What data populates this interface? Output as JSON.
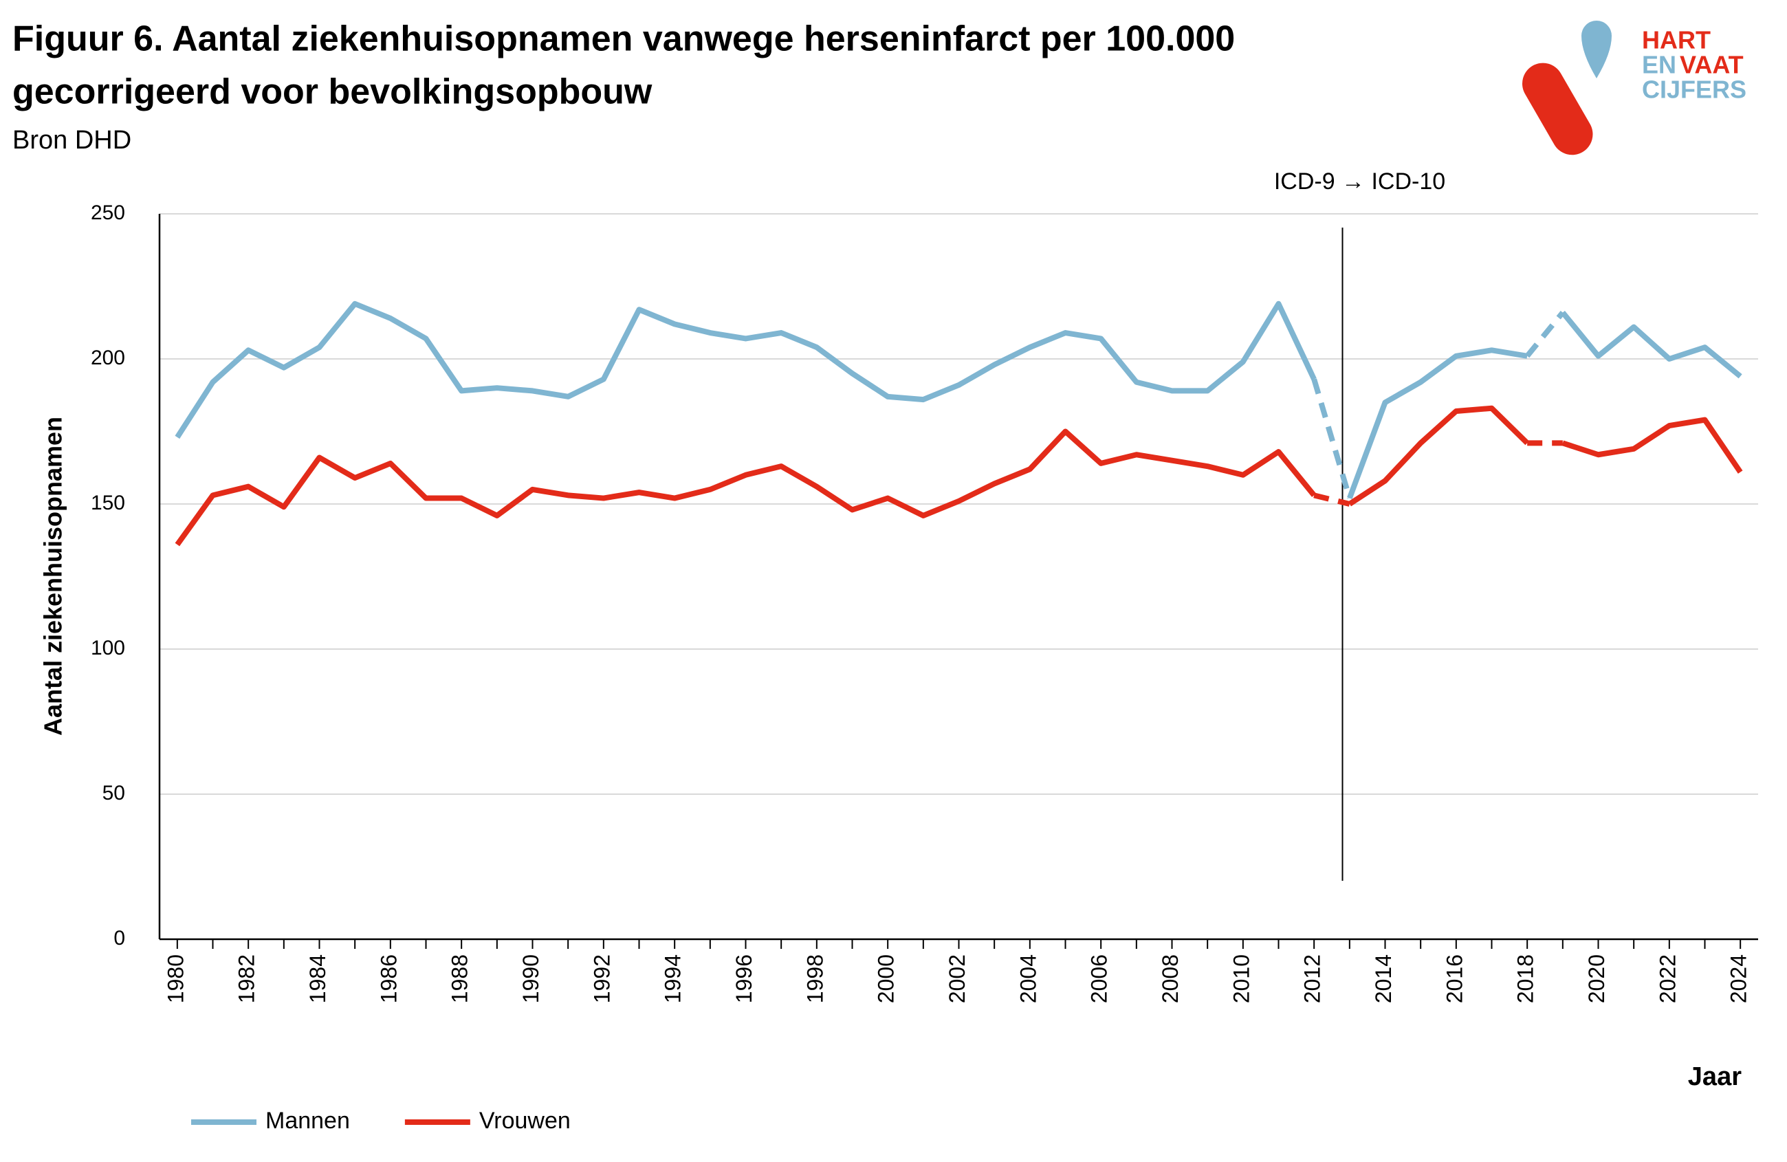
{
  "chart_data": {
    "type": "line",
    "title": "Figuur 6. Aantal ziekenhuisopnamen vanwege herseninfarct per 100.000",
    "title_line2": "gecorrigeerd voor bevolkingsopbouw",
    "subtitle": "Bron DHD",
    "ylabel": "Aantal ziekenhuisopnamen",
    "xlabel": "Jaar",
    "x": [
      1980,
      1981,
      1982,
      1983,
      1984,
      1985,
      1986,
      1987,
      1988,
      1989,
      1990,
      1991,
      1992,
      1993,
      1994,
      1995,
      1996,
      1997,
      1998,
      1999,
      2000,
      2001,
      2002,
      2003,
      2004,
      2005,
      2006,
      2007,
      2008,
      2009,
      2010,
      2011,
      2012,
      2013,
      2014,
      2015,
      2016,
      2017,
      2018,
      2019,
      2020,
      2021,
      2022,
      2023,
      2024
    ],
    "series": [
      {
        "name": "Mannen",
        "color": "#7fb5d1",
        "values": [
          173,
          192,
          203,
          197,
          204,
          219,
          214,
          207,
          189,
          190,
          189,
          187,
          193,
          217,
          212,
          209,
          207,
          209,
          204,
          195,
          187,
          186,
          191,
          198,
          204,
          209,
          207,
          192,
          189,
          189,
          199,
          219,
          193,
          152,
          185,
          192,
          201,
          203,
          201,
          216,
          201,
          211,
          200,
          204,
          194
        ]
      },
      {
        "name": "Vrouwen",
        "color": "#e32b19",
        "values": [
          136,
          153,
          156,
          149,
          166,
          159,
          164,
          152,
          152,
          146,
          155,
          153,
          152,
          154,
          152,
          155,
          160,
          163,
          156,
          148,
          152,
          146,
          151,
          157,
          162,
          175,
          164,
          167,
          165,
          163,
          160,
          168,
          153,
          150,
          158,
          171,
          182,
          183,
          171,
          171,
          167,
          169,
          177,
          179,
          161
        ]
      }
    ],
    "dashed_segments": [
      [
        2012,
        2013
      ],
      [
        2018,
        2019
      ]
    ],
    "xlim": [
      1979.5,
      2024.5
    ],
    "xticks": [
      1980,
      1982,
      1984,
      1986,
      1988,
      1990,
      1992,
      1994,
      1996,
      1998,
      2000,
      2002,
      2004,
      2006,
      2008,
      2010,
      2012,
      2014,
      2016,
      2018,
      2020,
      2022,
      2024
    ],
    "ylim": [
      0,
      250
    ],
    "yticks": [
      0,
      50,
      100,
      150,
      200,
      250
    ],
    "grid": true,
    "annotation": {
      "text": "ICD-9 → ICD-10",
      "x": 2012.8
    },
    "legend": "bottom-left"
  },
  "logo": {
    "hart": "HART",
    "en": "EN",
    "vaat": "VAAT",
    "cijfers": "CIJFERS"
  }
}
